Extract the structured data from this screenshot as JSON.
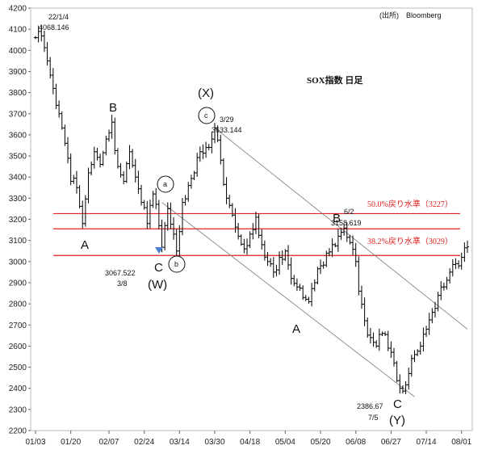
{
  "chart_data": {
    "type": "ohlc",
    "title": "SOX指数 日足",
    "source": "(出所)　Bloomberg",
    "ylim": [
      2200,
      4200
    ],
    "yticks": [
      2200,
      2300,
      2400,
      2500,
      2600,
      2700,
      2800,
      2900,
      3000,
      3100,
      3200,
      3300,
      3400,
      3500,
      3600,
      3700,
      3800,
      3900,
      4000,
      4100,
      4200
    ],
    "xticks": [
      {
        "index": 0,
        "label": "01/03"
      },
      {
        "index": 12,
        "label": "01/20"
      },
      {
        "index": 25,
        "label": "02/07"
      },
      {
        "index": 37,
        "label": "02/24"
      },
      {
        "index": 49,
        "label": "03/14"
      },
      {
        "index": 61,
        "label": "03/30"
      },
      {
        "index": 73,
        "label": "04/18"
      },
      {
        "index": 85,
        "label": "05/04"
      },
      {
        "index": 97,
        "label": "05/20"
      },
      {
        "index": 109,
        "label": "06/08"
      },
      {
        "index": 121,
        "label": "06/27"
      },
      {
        "index": 133,
        "label": "07/14"
      },
      {
        "index": 145,
        "label": "08/01"
      }
    ],
    "x_count": 148,
    "anchors": [
      [
        0,
        4060
      ],
      [
        2,
        4068
      ],
      [
        4,
        3950
      ],
      [
        6,
        3820
      ],
      [
        8,
        3700
      ],
      [
        10,
        3560
      ],
      [
        12,
        3380
      ],
      [
        14,
        3350
      ],
      [
        16,
        3180
      ],
      [
        18,
        3420
      ],
      [
        20,
        3520
      ],
      [
        22,
        3460
      ],
      [
        24,
        3580
      ],
      [
        26,
        3660
      ],
      [
        28,
        3450
      ],
      [
        30,
        3380
      ],
      [
        32,
        3520
      ],
      [
        34,
        3400
      ],
      [
        36,
        3280
      ],
      [
        38,
        3180
      ],
      [
        40,
        3320
      ],
      [
        42,
        3170
      ],
      [
        43,
        3067.5
      ],
      [
        45,
        3250
      ],
      [
        47,
        3130
      ],
      [
        48,
        3050
      ],
      [
        50,
        3280
      ],
      [
        52,
        3360
      ],
      [
        54,
        3420
      ],
      [
        56,
        3520
      ],
      [
        58,
        3540
      ],
      [
        60,
        3580
      ],
      [
        61,
        3633
      ],
      [
        63,
        3480
      ],
      [
        65,
        3300
      ],
      [
        67,
        3220
      ],
      [
        69,
        3120
      ],
      [
        71,
        3060
      ],
      [
        73,
        3130
      ],
      [
        75,
        3210
      ],
      [
        77,
        3080
      ],
      [
        79,
        3000
      ],
      [
        81,
        2950
      ],
      [
        83,
        3020
      ],
      [
        85,
        3050
      ],
      [
        87,
        2920
      ],
      [
        89,
        2880
      ],
      [
        91,
        2830
      ],
      [
        93,
        2810
      ],
      [
        95,
        2900
      ],
      [
        97,
        2980
      ],
      [
        99,
        3040
      ],
      [
        101,
        3080
      ],
      [
        103,
        3120
      ],
      [
        105,
        3158.6
      ],
      [
        107,
        3090
      ],
      [
        109,
        3000
      ],
      [
        110,
        2860
      ],
      [
        112,
        2720
      ],
      [
        114,
        2640
      ],
      [
        116,
        2600
      ],
      [
        118,
        2660
      ],
      [
        120,
        2590
      ],
      [
        122,
        2520
      ],
      [
        124,
        2400
      ],
      [
        125,
        2386.7
      ],
      [
        127,
        2470
      ],
      [
        129,
        2560
      ],
      [
        131,
        2600
      ],
      [
        133,
        2680
      ],
      [
        135,
        2760
      ],
      [
        137,
        2840
      ],
      [
        139,
        2880
      ],
      [
        141,
        2950
      ],
      [
        143,
        2990
      ],
      [
        145,
        3020
      ],
      [
        147,
        3070
      ]
    ],
    "fib_levels": [
      {
        "value": 3227,
        "label": "50.0%戻り水準（3227）"
      },
      {
        "value": 3155,
        "label": ""
      },
      {
        "value": 3029,
        "label": "38.2%戻り水準（3029）"
      }
    ],
    "channel_lines": [
      {
        "from": [
          61,
          3633
        ],
        "to": [
          147,
          2680
        ]
      },
      {
        "from": [
          43,
          3280
        ],
        "to": [
          129,
          2360
        ]
      }
    ],
    "annotations": {
      "start_date": "22/1/4",
      "start_value": "4068.146",
      "x_date": "3/29",
      "x_value": "3633.144",
      "w_value": "3067.522",
      "w_date": "3/8",
      "b2_date": "6/2",
      "b2_value": "3158.619",
      "y_value": "2386.67",
      "y_date": "7/5"
    },
    "waves": {
      "A1": "A",
      "B1": "B",
      "C1": "C",
      "W": "(W)",
      "X": "(X)",
      "A2": "A",
      "B2": "B",
      "C2": "C",
      "Y": "(Y)",
      "sub_a": "a",
      "sub_b": "b",
      "sub_c": "c"
    },
    "colors": {
      "bars": "#000000",
      "fib": "#e02020",
      "channel": "#777777",
      "marker": "#4a7fd0"
    }
  }
}
